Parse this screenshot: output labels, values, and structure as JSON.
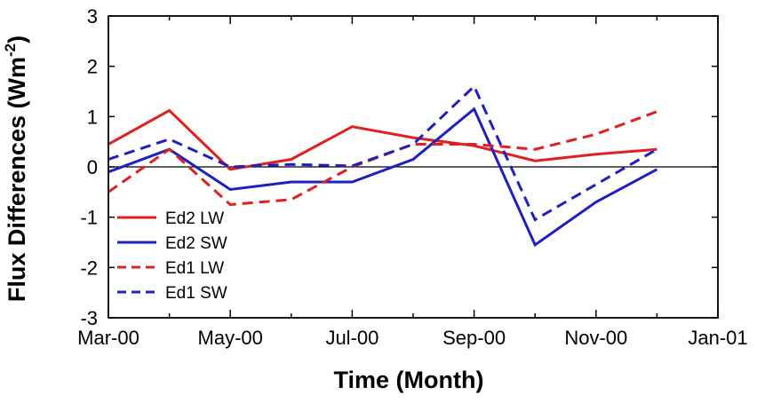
{
  "chart_data": {
    "type": "line",
    "title": "",
    "xlabel": "Time (Month)",
    "ylabel": "Flux Differences (Wm",
    "ylabel_superscript": "-2",
    "ylabel_suffix": ")",
    "x": [
      "2000-03",
      "2000-04",
      "2000-05",
      "2000-06",
      "2000-07",
      "2000-08",
      "2000-09",
      "2000-10",
      "2000-11",
      "2000-12",
      "2001-01"
    ],
    "x_tick_labels": [
      "Mar-00",
      "May-00",
      "Jul-00",
      "Sep-00",
      "Nov-00",
      "Jan-01"
    ],
    "y_ticks": [
      3,
      2,
      1,
      0,
      -1,
      -2,
      -3
    ],
    "ylim": [
      -3,
      3
    ],
    "grid": false,
    "zero_line": true,
    "legend_position": "lower-left",
    "series": [
      {
        "name": "Ed2 LW",
        "color": "#e02020",
        "dash": "solid",
        "values": [
          0.45,
          1.12,
          -0.05,
          0.15,
          0.8,
          0.58,
          0.42,
          0.12,
          0.25,
          0.35,
          null
        ]
      },
      {
        "name": "Ed2 SW",
        "color": "#2020c0",
        "dash": "solid",
        "values": [
          -0.1,
          0.35,
          -0.45,
          -0.3,
          -0.3,
          0.15,
          1.15,
          -1.55,
          -0.7,
          -0.05,
          null
        ]
      },
      {
        "name": "Ed1 LW",
        "color": "#e02020",
        "dash": "dashed",
        "values": [
          -0.5,
          0.35,
          -0.75,
          -0.65,
          0.0,
          0.45,
          0.45,
          0.35,
          0.65,
          1.1,
          null
        ]
      },
      {
        "name": "Ed1 SW",
        "color": "#2020c0",
        "dash": "dashed",
        "values": [
          0.15,
          0.55,
          0.0,
          0.05,
          0.02,
          0.45,
          1.6,
          -1.05,
          -0.35,
          0.35,
          null
        ]
      }
    ]
  }
}
